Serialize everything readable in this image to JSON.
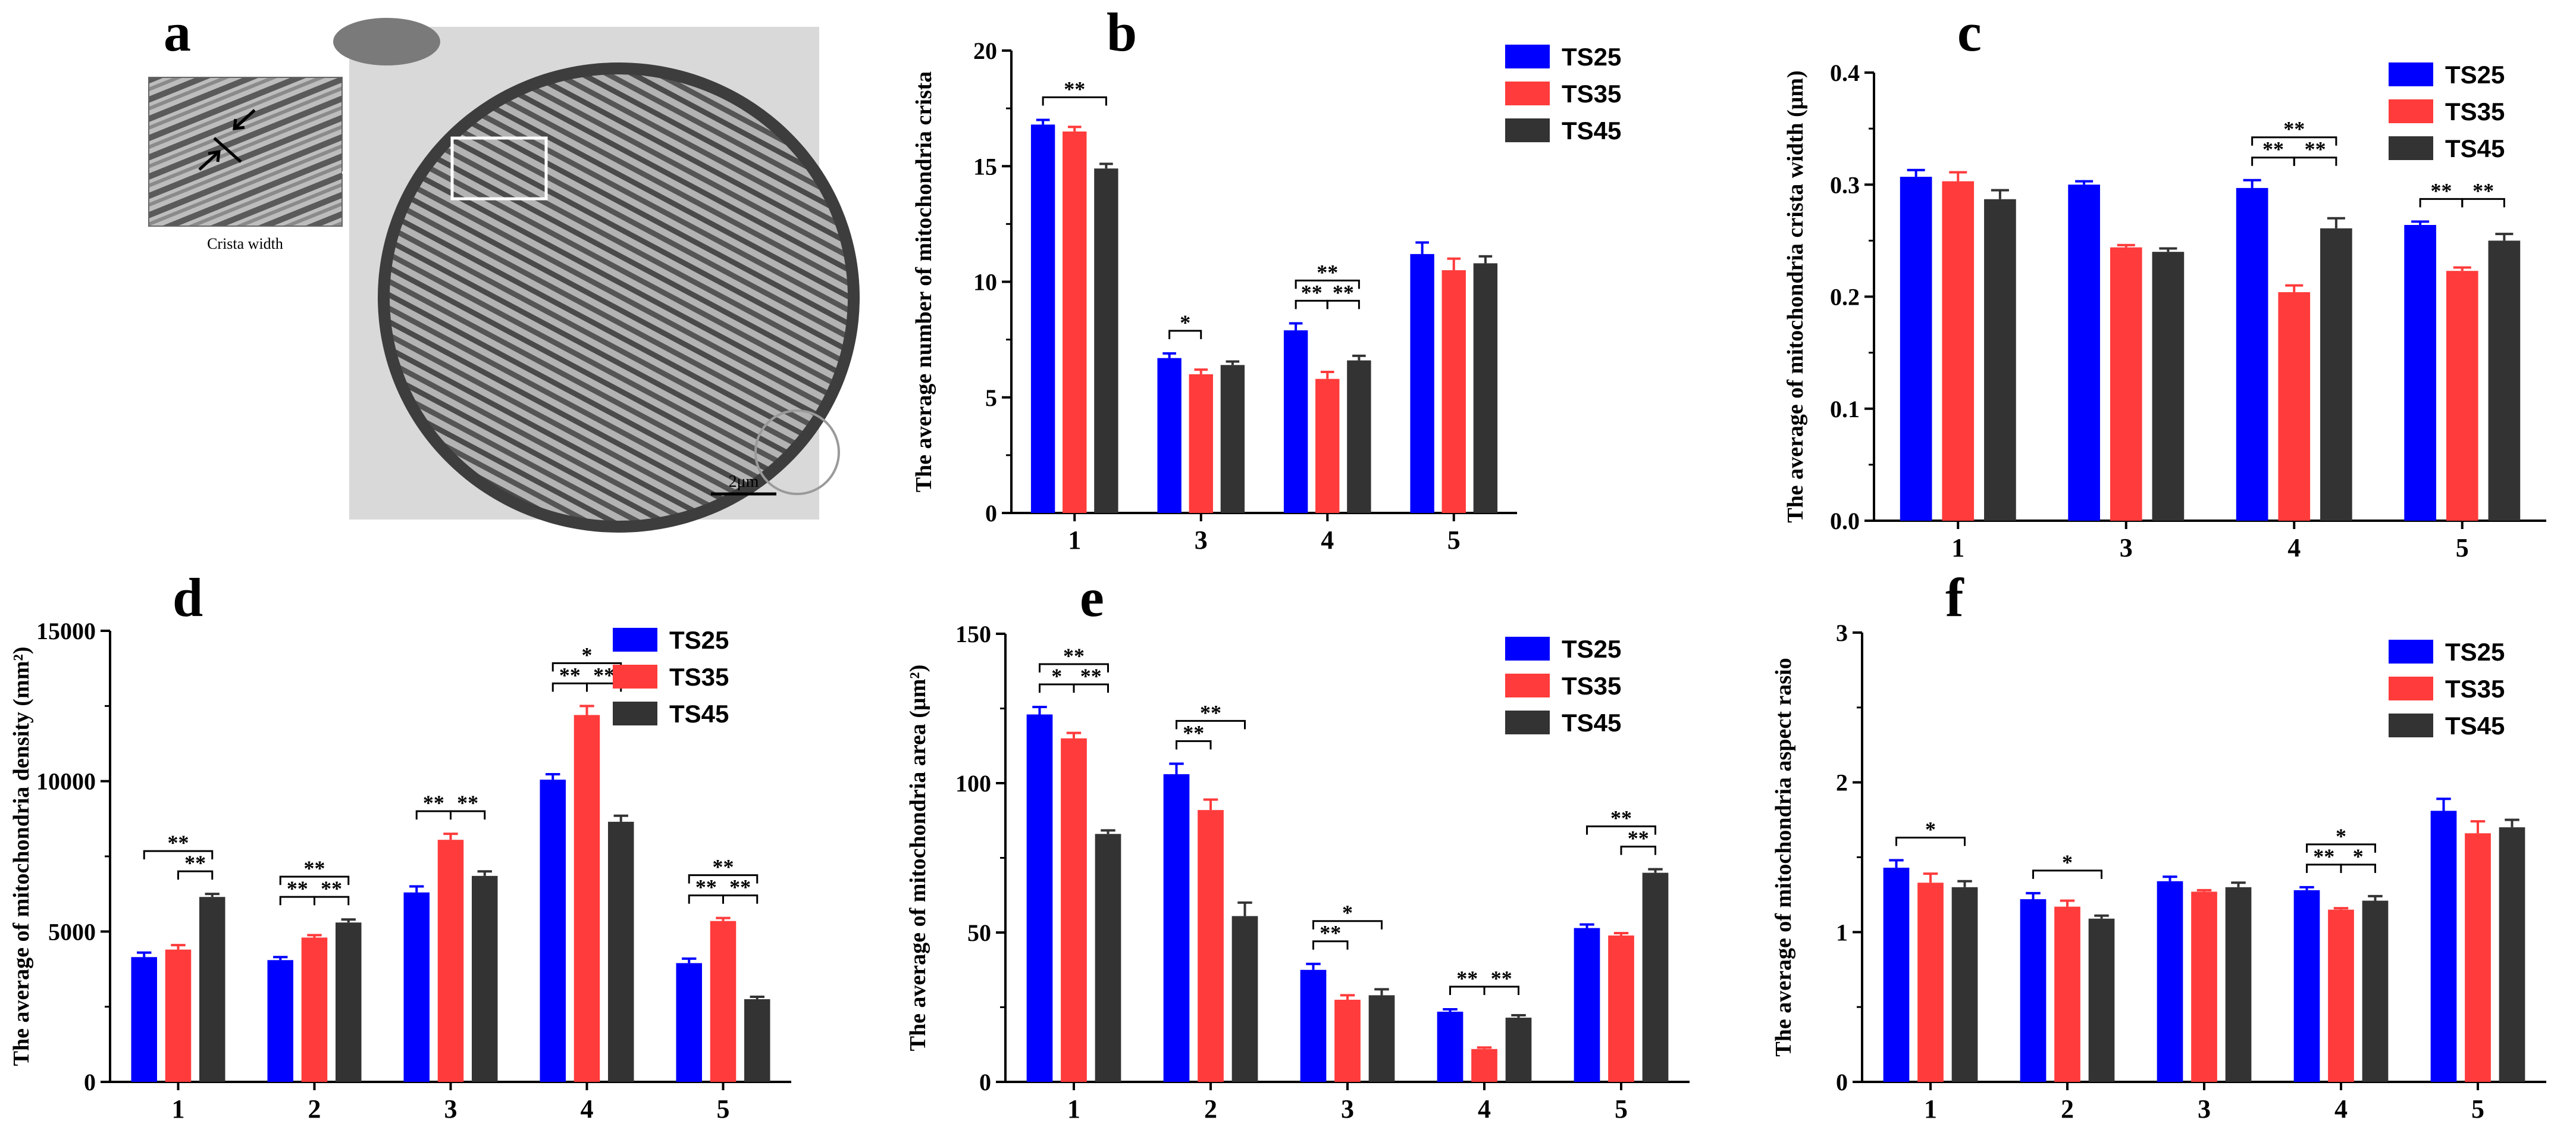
{
  "colors": {
    "TS25": "#0000ff",
    "TS35": "#ff3b3b",
    "TS45": "#333333"
  },
  "legend": [
    "TS25",
    "TS35",
    "TS45"
  ],
  "micrograph": {
    "label": "a",
    "inset_caption": "Crista width",
    "scale_bar": "2μm"
  },
  "chart_data": [
    {
      "label": "b",
      "type": "bar",
      "categories": [
        "1",
        "3",
        "4",
        "5"
      ],
      "series": [
        {
          "name": "TS25",
          "values": [
            16.8,
            6.7,
            7.9,
            11.2
          ],
          "errors": [
            0.2,
            0.2,
            0.3,
            0.5
          ]
        },
        {
          "name": "TS35",
          "values": [
            16.5,
            6.0,
            5.8,
            10.5
          ],
          "errors": [
            0.2,
            0.2,
            0.3,
            0.5
          ]
        },
        {
          "name": "TS45",
          "values": [
            14.9,
            6.4,
            6.6,
            10.8
          ],
          "errors": [
            0.2,
            0.15,
            0.2,
            0.3
          ]
        }
      ],
      "ylabel": "The average number of mitochondria crista",
      "ylim": [
        0,
        20
      ],
      "yticks": [
        "0",
        "5",
        "10",
        "15",
        "20"
      ],
      "sig": [
        {
          "cat": 0,
          "from": 0,
          "to": 2,
          "text": "**",
          "row": 0
        },
        {
          "cat": 1,
          "from": 0,
          "to": 1,
          "text": "*",
          "row": 0
        },
        {
          "cat": 2,
          "from": 0,
          "to": 2,
          "text": "**",
          "row": 1
        },
        {
          "cat": 2,
          "from": 0,
          "to": 1,
          "text": "**",
          "row": 0
        },
        {
          "cat": 2,
          "from": 1,
          "to": 2,
          "text": "**",
          "row": 0
        }
      ]
    },
    {
      "label": "c",
      "type": "bar",
      "categories": [
        "1",
        "3",
        "4",
        "5"
      ],
      "series": [
        {
          "name": "TS25",
          "values": [
            0.307,
            0.3,
            0.297,
            0.264
          ],
          "errors": [
            0.006,
            0.003,
            0.007,
            0.003
          ]
        },
        {
          "name": "TS35",
          "values": [
            0.303,
            0.244,
            0.204,
            0.223
          ],
          "errors": [
            0.008,
            0.002,
            0.006,
            0.003
          ]
        },
        {
          "name": "TS45",
          "values": [
            0.287,
            0.24,
            0.261,
            0.25
          ],
          "errors": [
            0.008,
            0.003,
            0.009,
            0.006
          ]
        }
      ],
      "ylabel": "The average of mitochondria crista width (μm)",
      "ylim": [
        0,
        0.4
      ],
      "yticks": [
        "0.0",
        "0.1",
        "0.2",
        "0.3",
        "0.4"
      ],
      "sig": [
        {
          "cat": 2,
          "from": 0,
          "to": 2,
          "text": "**",
          "row": 1
        },
        {
          "cat": 2,
          "from": 0,
          "to": 1,
          "text": "**",
          "row": 0
        },
        {
          "cat": 2,
          "from": 1,
          "to": 2,
          "text": "**",
          "row": 0
        },
        {
          "cat": 3,
          "from": 0,
          "to": 1,
          "text": "**",
          "row": 0
        },
        {
          "cat": 3,
          "from": 1,
          "to": 2,
          "text": "**",
          "row": 0
        }
      ]
    },
    {
      "label": "d",
      "type": "bar",
      "categories": [
        "1",
        "2",
        "3",
        "4",
        "5"
      ],
      "series": [
        {
          "name": "TS25",
          "values": [
            4150,
            4050,
            6300,
            10050,
            3950
          ],
          "errors": [
            150,
            100,
            200,
            180,
            150
          ]
        },
        {
          "name": "TS35",
          "values": [
            4400,
            4800,
            8050,
            12200,
            5350
          ],
          "errors": [
            150,
            80,
            200,
            300,
            100
          ]
        },
        {
          "name": "TS45",
          "values": [
            6150,
            5300,
            6850,
            8650,
            2750
          ],
          "errors": [
            100,
            100,
            150,
            200,
            80
          ]
        }
      ],
      "ylabel": "The average of mitochondria density (mm²)",
      "ylim": [
        0,
        15000
      ],
      "yticks": [
        "0",
        "5000",
        "10000",
        "15000"
      ],
      "sig": [
        {
          "cat": 0,
          "from": 0,
          "to": 2,
          "text": "**",
          "row": 1
        },
        {
          "cat": 0,
          "from": 1,
          "to": 2,
          "text": "**",
          "row": 0
        },
        {
          "cat": 1,
          "from": 0,
          "to": 2,
          "text": "**",
          "row": 1
        },
        {
          "cat": 1,
          "from": 0,
          "to": 1,
          "text": "**",
          "row": 0
        },
        {
          "cat": 1,
          "from": 1,
          "to": 2,
          "text": "**",
          "row": 0
        },
        {
          "cat": 2,
          "from": 0,
          "to": 1,
          "text": "**",
          "row": 0
        },
        {
          "cat": 2,
          "from": 1,
          "to": 2,
          "text": "**",
          "row": 0
        },
        {
          "cat": 3,
          "from": 0,
          "to": 2,
          "text": "*",
          "row": 1
        },
        {
          "cat": 3,
          "from": 0,
          "to": 1,
          "text": "**",
          "row": 0
        },
        {
          "cat": 3,
          "from": 1,
          "to": 2,
          "text": "**",
          "row": 0
        },
        {
          "cat": 4,
          "from": 0,
          "to": 2,
          "text": "**",
          "row": 1
        },
        {
          "cat": 4,
          "from": 0,
          "to": 1,
          "text": "**",
          "row": 0
        },
        {
          "cat": 4,
          "from": 1,
          "to": 2,
          "text": "**",
          "row": 0
        }
      ]
    },
    {
      "label": "e",
      "type": "bar",
      "categories": [
        "1",
        "2",
        "3",
        "4",
        "5"
      ],
      "series": [
        {
          "name": "TS25",
          "values": [
            123,
            103,
            37.5,
            23.5,
            51.5
          ],
          "errors": [
            2.5,
            3.5,
            2,
            0.8,
            1.2
          ]
        },
        {
          "name": "TS35",
          "values": [
            115,
            91,
            27.5,
            11,
            49
          ],
          "errors": [
            1.8,
            3.5,
            1.5,
            0.5,
            0.8
          ]
        },
        {
          "name": "TS45",
          "values": [
            83,
            55.5,
            29,
            21.5,
            70
          ],
          "errors": [
            1.2,
            4.5,
            2,
            0.8,
            1.2
          ]
        }
      ],
      "ylabel": "The average of mitochondria area (μm²)",
      "ylim": [
        0,
        150
      ],
      "yticks": [
        "0",
        "50",
        "100",
        "150"
      ],
      "sig": [
        {
          "cat": 0,
          "from": 0,
          "to": 2,
          "text": "**",
          "row": 1
        },
        {
          "cat": 0,
          "from": 0,
          "to": 1,
          "text": "*",
          "row": 0
        },
        {
          "cat": 0,
          "from": 1,
          "to": 2,
          "text": "**",
          "row": 0
        },
        {
          "cat": 1,
          "from": 0,
          "to": 2,
          "text": "**",
          "row": 1
        },
        {
          "cat": 1,
          "from": 0,
          "to": 1,
          "text": "**",
          "row": 0
        },
        {
          "cat": 2,
          "from": 0,
          "to": 2,
          "text": "*",
          "row": 1
        },
        {
          "cat": 2,
          "from": 0,
          "to": 1,
          "text": "**",
          "row": 0
        },
        {
          "cat": 3,
          "from": 0,
          "to": 1,
          "text": "**",
          "row": 0
        },
        {
          "cat": 3,
          "from": 1,
          "to": 2,
          "text": "**",
          "row": 0
        },
        {
          "cat": 4,
          "from": 0,
          "to": 2,
          "text": "**",
          "row": 1
        },
        {
          "cat": 4,
          "from": 1,
          "to": 2,
          "text": "**",
          "row": 0
        }
      ]
    },
    {
      "label": "f",
      "type": "bar",
      "categories": [
        "1",
        "2",
        "3",
        "4",
        "5"
      ],
      "series": [
        {
          "name": "TS25",
          "values": [
            1.43,
            1.22,
            1.34,
            1.28,
            1.81
          ],
          "errors": [
            0.05,
            0.04,
            0.03,
            0.02,
            0.08
          ]
        },
        {
          "name": "TS35",
          "values": [
            1.33,
            1.17,
            1.27,
            1.15,
            1.66
          ],
          "errors": [
            0.06,
            0.04,
            0.01,
            0.01,
            0.08
          ]
        },
        {
          "name": "TS45",
          "values": [
            1.3,
            1.09,
            1.3,
            1.21,
            1.7
          ],
          "errors": [
            0.04,
            0.02,
            0.03,
            0.03,
            0.05
          ]
        }
      ],
      "ylabel": "The average of mitochondria aspect rasio",
      "ylim": [
        0,
        3
      ],
      "yticks": [
        "0",
        "1",
        "2",
        "3"
      ],
      "sig": [
        {
          "cat": 0,
          "from": 0,
          "to": 2,
          "text": "*",
          "row": 0
        },
        {
          "cat": 1,
          "from": 0,
          "to": 2,
          "text": "*",
          "row": 0
        },
        {
          "cat": 3,
          "from": 0,
          "to": 2,
          "text": "*",
          "row": 1
        },
        {
          "cat": 3,
          "from": 0,
          "to": 1,
          "text": "**",
          "row": 0
        },
        {
          "cat": 3,
          "from": 1,
          "to": 2,
          "text": "*",
          "row": 0
        }
      ]
    }
  ]
}
